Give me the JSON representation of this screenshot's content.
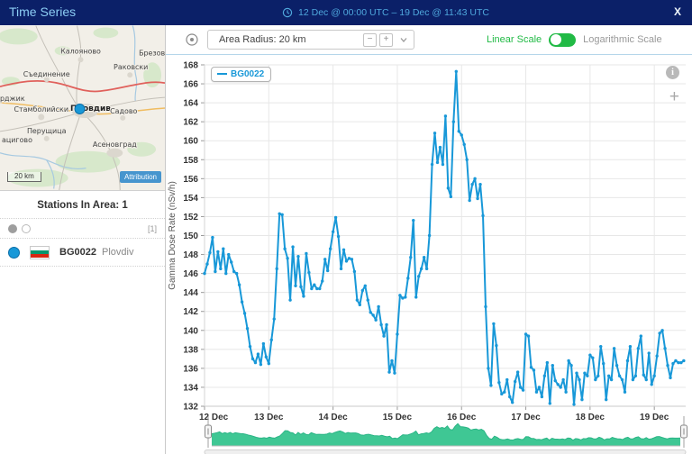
{
  "top_bar": {
    "title": "Time Series",
    "date_range": "12 Dec @ 00:00 UTC – 19 Dec @ 11:43 UTC",
    "close_label": "X"
  },
  "sidebar": {
    "map": {
      "place_labels": [
        "Калояново",
        "Брезово",
        "Съединение",
        "Раковски",
        "рджик",
        "Стамболийски",
        "Пловдив",
        "Садово",
        "Перущица",
        "ацигово",
        "Асеновград"
      ],
      "scale_label": "20 km",
      "attribution_label": "Attribution",
      "marker_color": "#1898d8"
    },
    "stations_heading": "Stations In Area: 1",
    "page_indicator": "[1]",
    "stations": [
      {
        "code": "BG0022",
        "name": "Plovdiv",
        "marker_color": "#1898d8",
        "flag": "Bulgaria"
      }
    ]
  },
  "toolbar": {
    "radius_label": "Area Radius: 20 km",
    "minus_label": "−",
    "plus_label": "+",
    "linear_scale_label": "Linear Scale",
    "log_scale_label": "Logarithmic Scale",
    "active_scale": "linear",
    "toggle_color": "#21ba45"
  },
  "chart": {
    "info_icon": "i",
    "zoom_in_icon": "+"
  },
  "chart_data": {
    "type": "line",
    "title": "",
    "ylabel": "Gamma Dose Rate (nSv/h)",
    "ylim": [
      132,
      168
    ],
    "y_tick_step": 2,
    "x_start": "12 Dec 00:00 UTC",
    "x_end": "19 Dec 11:43 UTC",
    "interval_hours": 1,
    "total_hours": 179.72,
    "grid": true,
    "legend_position": "top-left",
    "x_tick_labels": [
      "12 Dec",
      "13 Dec",
      "14 Dec",
      "15 Dec",
      "16 Dec",
      "17 Dec",
      "18 Dec",
      "19 Dec"
    ],
    "series": [
      {
        "name": "BG0022",
        "color": "#1898d8",
        "values": [
          146,
          147,
          148.2,
          149.8,
          146.2,
          148.3,
          146.5,
          148.6,
          146,
          148,
          147.2,
          146.2,
          146,
          144.8,
          143,
          141.8,
          140.2,
          138.3,
          137,
          136.6,
          137.5,
          136.4,
          138.6,
          137.2,
          136.5,
          139,
          141.2,
          146.5,
          152.3,
          152.2,
          148.6,
          147.6,
          143.2,
          148.8,
          144.7,
          147.8,
          144.6,
          143.6,
          148.1,
          146.1,
          144.4,
          144.8,
          144.4,
          144.4,
          145.2,
          147.5,
          146.3,
          148.6,
          150.4,
          151.9,
          149.9,
          146.5,
          148.5,
          147.3,
          147.6,
          147.5,
          146.2,
          143.2,
          142.7,
          144.2,
          144.7,
          143.2,
          141.9,
          141.6,
          141.1,
          142.5,
          140.6,
          139.4,
          140.6,
          135.6,
          136.8,
          135.5,
          139.6,
          143.7,
          143.4,
          143.5,
          145.5,
          147.7,
          151.6,
          143.5,
          145.7,
          146.5,
          147.7,
          146.5,
          150,
          157.5,
          160.8,
          157.7,
          159.3,
          157.5,
          162.6,
          155,
          154.1,
          162,
          167.3,
          161,
          160.6,
          159.6,
          158,
          153.7,
          155.4,
          156,
          153.9,
          155.4,
          152.1,
          142.5,
          136,
          134.2,
          140.7,
          138.4,
          134.5,
          133.3,
          133.5,
          134.8,
          133,
          132.4,
          134.6,
          135.6,
          134,
          133.7,
          139.6,
          139.4,
          136.1,
          135.8,
          133.5,
          134,
          133,
          135.2,
          136.6,
          132.3,
          136.3,
          134.7,
          134.3,
          134,
          134.8,
          133.5,
          136.8,
          136.3,
          132.2,
          135.5,
          134.8,
          132.7,
          135.5,
          135.2,
          137.4,
          137.1,
          134.8,
          135.2,
          138.3,
          136.5,
          132.7,
          135.2,
          134.8,
          138.1,
          136.3,
          135.2,
          134.8,
          133.5,
          136.8,
          138.3,
          134.8,
          135.2,
          138.1,
          139.4,
          135.3,
          134.8,
          137.6,
          134.3,
          135.2,
          137.3,
          139.7,
          140,
          138.1,
          136.3,
          135,
          136.5,
          136.8,
          136.6,
          136.6,
          136.8
        ]
      }
    ],
    "navigator": {
      "fill_color": "#3fc794",
      "line_color": "#2bb586"
    }
  }
}
